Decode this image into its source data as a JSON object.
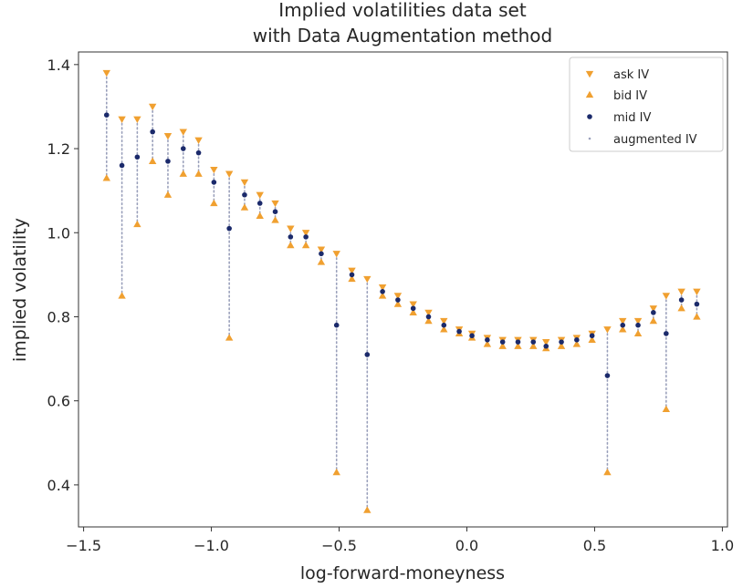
{
  "chart_data": {
    "type": "scatter",
    "title": [
      "Implied volatilities data set",
      "with Data Augmentation method"
    ],
    "xlabel": "log-forward-moneyness",
    "ylabel": "implied volatility",
    "xlim": [
      -1.52,
      1.02
    ],
    "ylim": [
      0.3,
      1.43
    ],
    "xticks": [
      -1.5,
      -1.0,
      -0.5,
      0.0,
      0.5,
      1.0
    ],
    "xtick_labels": [
      "−1.5",
      "−1.0",
      "−0.5",
      "0.0",
      "0.5",
      "1.0"
    ],
    "yticks": [
      0.4,
      0.6,
      0.8,
      1.0,
      1.2,
      1.4
    ],
    "ytick_labels": [
      "0.4",
      "0.6",
      "0.8",
      "1.0",
      "1.2",
      "1.4"
    ],
    "grid": false,
    "legend_position": "top-right",
    "colors": {
      "ask": "#f0a030",
      "bid": "#f0a030",
      "mid": "#1b2a6b",
      "augmented": "#9aa0bb"
    },
    "x": [
      -1.41,
      -1.35,
      -1.29,
      -1.23,
      -1.17,
      -1.11,
      -1.05,
      -0.99,
      -0.93,
      -0.87,
      -0.81,
      -0.75,
      -0.69,
      -0.63,
      -0.57,
      -0.51,
      -0.45,
      -0.39,
      -0.33,
      -0.27,
      -0.21,
      -0.15,
      -0.09,
      -0.03,
      0.02,
      0.08,
      0.14,
      0.2,
      0.26,
      0.31,
      0.37,
      0.43,
      0.49,
      0.55,
      0.61,
      0.67,
      0.73,
      0.78,
      0.84,
      0.9
    ],
    "series": [
      {
        "name": "ask IV",
        "marker": "tri_down",
        "values": [
          1.38,
          1.27,
          1.27,
          1.3,
          1.23,
          1.24,
          1.22,
          1.15,
          1.14,
          1.12,
          1.09,
          1.07,
          1.01,
          1.0,
          0.96,
          0.95,
          0.91,
          0.89,
          0.87,
          0.85,
          0.83,
          0.81,
          0.79,
          0.77,
          0.76,
          0.75,
          0.745,
          0.745,
          0.745,
          0.74,
          0.745,
          0.75,
          0.76,
          0.77,
          0.79,
          0.79,
          0.82,
          0.85,
          0.86,
          0.86
        ]
      },
      {
        "name": "bid IV",
        "marker": "tri_up",
        "values": [
          1.13,
          0.85,
          1.02,
          1.17,
          1.09,
          1.14,
          1.14,
          1.07,
          0.75,
          1.06,
          1.04,
          1.03,
          0.97,
          0.97,
          0.93,
          0.43,
          0.89,
          0.34,
          0.85,
          0.83,
          0.81,
          0.79,
          0.77,
          0.76,
          0.75,
          0.735,
          0.73,
          0.73,
          0.73,
          0.725,
          0.73,
          0.735,
          0.745,
          0.43,
          0.77,
          0.76,
          0.79,
          0.58,
          0.82,
          0.8
        ]
      },
      {
        "name": "mid IV",
        "marker": "dot",
        "values": [
          1.28,
          1.16,
          1.18,
          1.24,
          1.17,
          1.2,
          1.19,
          1.12,
          1.01,
          1.09,
          1.07,
          1.05,
          0.99,
          0.99,
          0.95,
          0.78,
          0.9,
          0.71,
          0.86,
          0.84,
          0.82,
          0.8,
          0.78,
          0.765,
          0.755,
          0.745,
          0.74,
          0.74,
          0.74,
          0.73,
          0.74,
          0.745,
          0.755,
          0.66,
          0.78,
          0.78,
          0.81,
          0.76,
          0.84,
          0.83
        ]
      },
      {
        "name": "augmented IV",
        "marker": "small-dot",
        "values": []
      }
    ]
  }
}
